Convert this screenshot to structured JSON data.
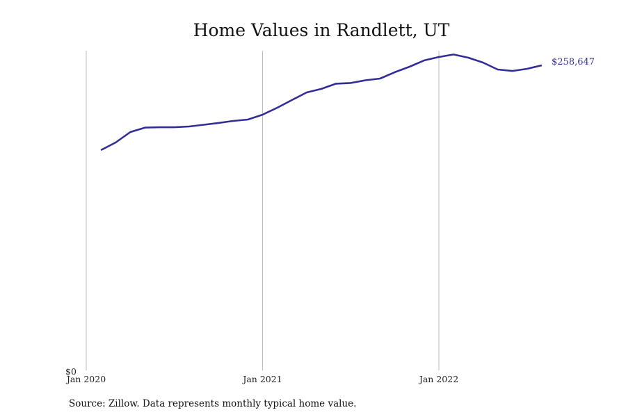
{
  "chart_data": {
    "type": "line",
    "title": "Home Values in Randlett, UT",
    "xlabel": "",
    "ylabel": "",
    "x_ticks": [
      "Jan 2020",
      "Jan 2021",
      "Jan 2022"
    ],
    "y_ticks": [
      "$0"
    ],
    "ylim": [
      0,
      258647
    ],
    "grid": "vertical",
    "series": [
      {
        "name": "Typical home value",
        "color": "#332e96",
        "end_label": "$258,647",
        "x": [
          "2020-02",
          "2020-03",
          "2020-04",
          "2020-05",
          "2020-06",
          "2020-07",
          "2020-08",
          "2020-09",
          "2020-10",
          "2020-11",
          "2020-12",
          "2021-01",
          "2021-02",
          "2021-03",
          "2021-04",
          "2021-05",
          "2021-06",
          "2021-07",
          "2021-08",
          "2021-09",
          "2021-10",
          "2021-11",
          "2021-12",
          "2022-01",
          "2022-02",
          "2022-03",
          "2022-04",
          "2022-05",
          "2022-06",
          "2022-07",
          "2022-08"
        ],
        "values": [
          186930,
          193400,
          202200,
          206000,
          206300,
          206300,
          206900,
          208400,
          209900,
          211600,
          212800,
          216900,
          222800,
          229300,
          235700,
          238700,
          243100,
          243700,
          246000,
          247500,
          252800,
          257500,
          262800,
          265700,
          267800,
          265100,
          261000,
          255100,
          253900,
          255700,
          258647
        ]
      }
    ],
    "source": "Source: Zillow. Data represents monthly typical home value."
  }
}
